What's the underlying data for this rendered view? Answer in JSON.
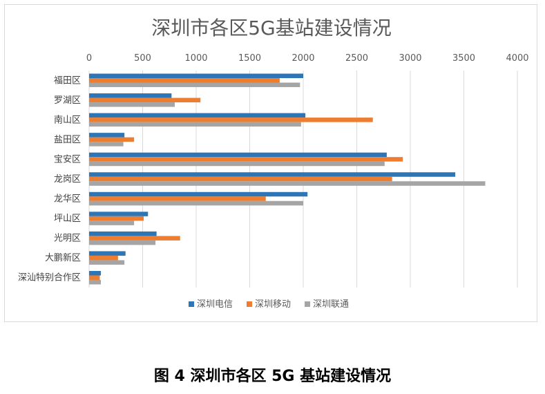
{
  "caption": "图 4 深圳市各区 5G 基站建设情况",
  "chart_data": {
    "type": "bar",
    "orientation": "horizontal",
    "title": "深圳市各区5G基站建设情况",
    "xlabel": "",
    "ylabel": "",
    "xlim": [
      0,
      4000
    ],
    "ticks": [
      0,
      500,
      1000,
      1500,
      2000,
      2500,
      3000,
      3500,
      4000
    ],
    "grid": true,
    "legend_position": "bottom",
    "categories": [
      "福田区",
      "罗湖区",
      "南山区",
      "盐田区",
      "宝安区",
      "龙岗区",
      "龙华区",
      "坪山区",
      "光明区",
      "大鹏新区",
      "深汕特别合作区"
    ],
    "series": [
      {
        "name": "深圳电信",
        "color": "#2e75b6",
        "values": [
          2000,
          770,
          2020,
          330,
          2780,
          3420,
          2040,
          550,
          630,
          340,
          110
        ]
      },
      {
        "name": "深圳移动",
        "color": "#ed7d31",
        "values": [
          1780,
          1040,
          2650,
          420,
          2930,
          2830,
          1650,
          510,
          850,
          270,
          100
        ]
      },
      {
        "name": "深圳联通",
        "color": "#a5a5a5",
        "values": [
          1970,
          800,
          1980,
          320,
          2760,
          3700,
          2000,
          420,
          620,
          330,
          110
        ]
      }
    ]
  }
}
